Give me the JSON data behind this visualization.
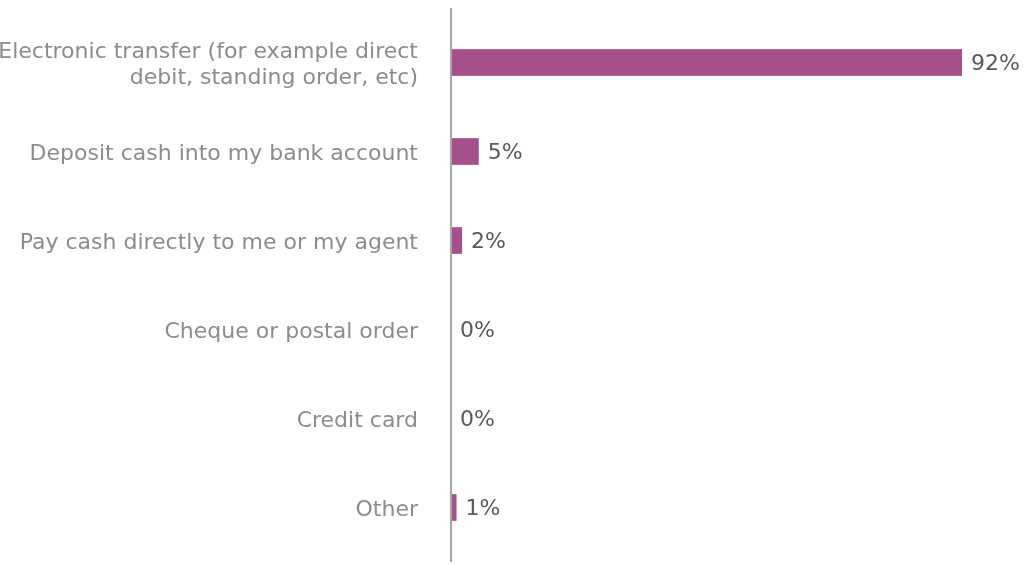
{
  "chart_data": {
    "type": "bar",
    "orientation": "horizontal",
    "categories": [
      "Electronic transfer (for example direct debit, standing order, etc)",
      "Deposit cash into my bank account",
      "Pay cash directly to me or my agent",
      "Cheque or postal order",
      "Credit card",
      "Other"
    ],
    "values": [
      92,
      5,
      2,
      0,
      0,
      1
    ],
    "value_labels": [
      "92%",
      "5%",
      "2%",
      "0%",
      "0%",
      "1%"
    ],
    "color": "#a5508a"
  }
}
